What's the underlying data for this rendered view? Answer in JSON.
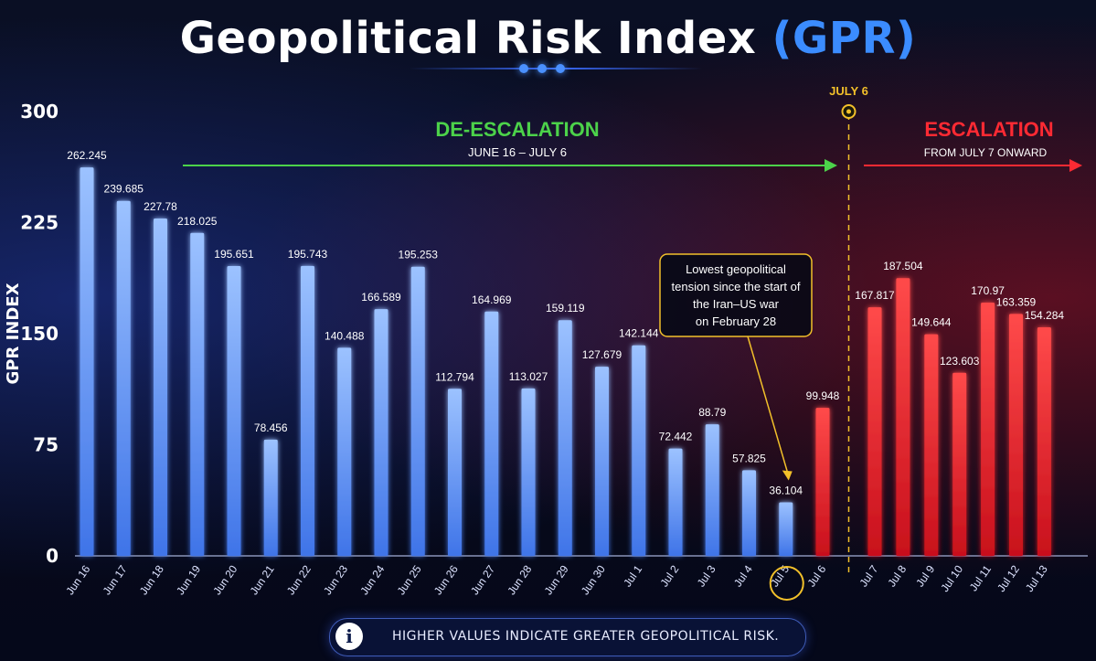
{
  "title_main": "Geopolitical Risk Index",
  "title_accent": "(GPR)",
  "footer_text": "HIGHER VALUES INDICATE GREATER GEOPOLITICAL RISK.",
  "footer_icon": "info-icon",
  "colors": {
    "blue": "#6fa4ff",
    "red": "#ff2a33",
    "green": "#4cd24a",
    "gold": "#f2c02a",
    "title_accent": "#3b8cff"
  },
  "chart_data": {
    "type": "bar",
    "ylabel": "GPR INDEX",
    "xlabel": "",
    "ylim": [
      0,
      300
    ],
    "yticks": [
      0,
      75,
      150,
      225,
      300
    ],
    "categories": [
      "Jun 16",
      "Jun 17",
      "Jun 18",
      "Jun 19",
      "Jun 20",
      "Jun 21",
      "Jun 22",
      "Jun 23",
      "Jun 24",
      "Jun 25",
      "Jun 26",
      "Jun 27",
      "Jun 28",
      "Jun 29",
      "Jun 30",
      "Jul 1",
      "Jul 2",
      "Jul 3",
      "Jul 4",
      "Jul 5",
      "Jul 6",
      "Jul 7",
      "Jul 8",
      "Jul 9",
      "Jul 10",
      "Jul 11",
      "Jul 12",
      "Jul 13"
    ],
    "values": [
      262.245,
      239.685,
      227.78,
      218.025,
      195.651,
      78.456,
      195.743,
      140.488,
      166.589,
      195.253,
      112.794,
      164.969,
      113.027,
      159.119,
      127.679,
      142.144,
      72.442,
      88.79,
      57.825,
      36.104,
      99.948,
      167.817,
      187.504,
      149.644,
      123.603,
      170.97,
      163.359,
      154.284
    ],
    "value_labels": [
      "262.245",
      "239.685",
      "227.78",
      "218.025",
      "195.651",
      "78.456",
      "195.743",
      "140.488",
      "166.589",
      "195.253",
      "112.794",
      "164.969",
      "113.027",
      "159.119",
      "127.679",
      "142.144",
      "72.442",
      "88.79",
      "57.825",
      "36.104",
      "99.948",
      "167.817",
      "187.504",
      "149.644",
      "123.603",
      "170.97",
      "163.359",
      "154.284"
    ],
    "bar_colors": [
      "blue",
      "blue",
      "blue",
      "blue",
      "blue",
      "blue",
      "blue",
      "blue",
      "blue",
      "blue",
      "blue",
      "blue",
      "blue",
      "blue",
      "blue",
      "blue",
      "blue",
      "blue",
      "blue",
      "blue",
      "red",
      "red",
      "red",
      "red",
      "red",
      "red",
      "red",
      "red"
    ],
    "grid": false,
    "highlight_category": "Jul 5",
    "marker": {
      "after_category": "Jul 6",
      "label": "JULY 6"
    },
    "annotations": {
      "deescalation": {
        "title": "DE-ESCALATION",
        "subtitle": "JUNE 16 – JULY 6"
      },
      "escalation": {
        "title": "ESCALATION",
        "subtitle": "FROM JULY 7 ONWARD"
      },
      "callout": {
        "lines": [
          "Lowest geopolitical",
          "tension since the start of",
          "the Iran–US war",
          "on February 28"
        ],
        "target_category": "Jul 5"
      }
    }
  }
}
